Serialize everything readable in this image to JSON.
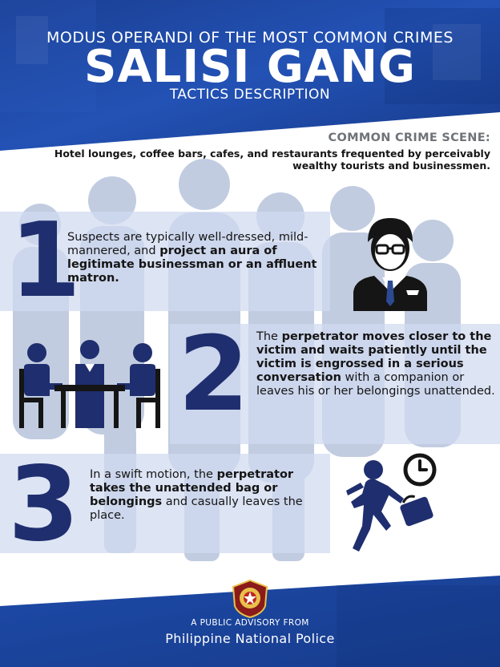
{
  "header": {
    "subtitle": "MODUS OPERANDI OF THE MOST COMMON CRIMES",
    "title": "SALISI GANG",
    "tagline": "TACTICS DESCRIPTION"
  },
  "scene": {
    "label": "COMMON CRIME SCENE:",
    "text": "Hotel lounges, coffee bars, cafes, and restaurants frequented by perceivably wealthy tourists and businessmen."
  },
  "steps": [
    {
      "number": "1",
      "parts": [
        "Suspects are typically well-dressed, mild-mannered, and ",
        "project an aura of legitimate businessman or an affluent matron."
      ],
      "icon": "businessman-icon"
    },
    {
      "number": "2",
      "parts": [
        "The ",
        "perpetrator moves closer to the victim and waits patiently until the victim is engrossed in a serious conversation",
        " with a companion or leaves his or her belongings unattended."
      ],
      "icon": "meeting-icon"
    },
    {
      "number": "3",
      "parts": [
        "In a swift motion, the ",
        "perpetrator takes the unattended bag or belongings",
        " and casually leaves the place."
      ],
      "icon": "running-thief-icon"
    }
  ],
  "footer": {
    "advisory": "A PUBLIC ADVISORY FROM",
    "agency": "Philippine National Police"
  },
  "colors": {
    "navy": "#1f2e6e",
    "header_blue": "#1f4aa6",
    "band": "#d0daf0",
    "scene_label_gray": "#6f7377"
  }
}
